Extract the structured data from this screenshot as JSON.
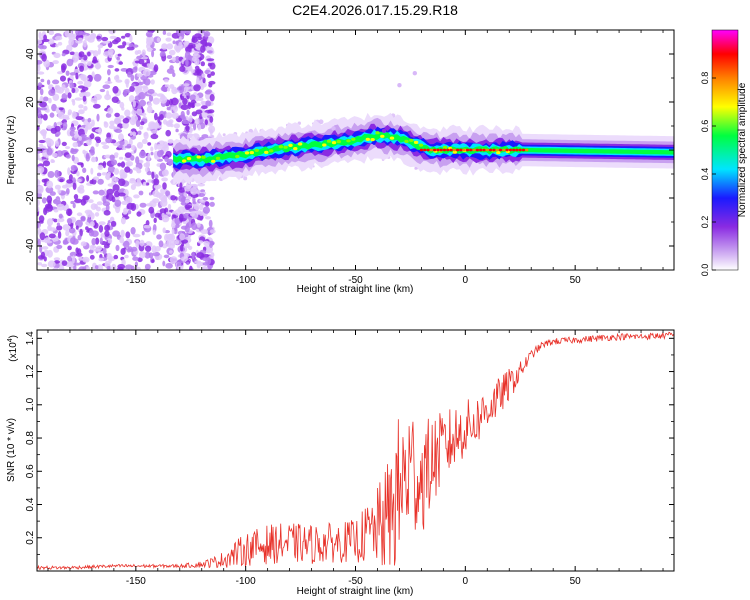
{
  "figure_title": "C2E4.2026.017.15.29.R18",
  "colors": {
    "snr_line": "#e8322a",
    "axis": "#000000",
    "spectrogram_noise": "#8a2be2"
  },
  "chart_data": [
    {
      "type": "heatmap",
      "title": "C2E4.2026.017.15.29.R18",
      "xlabel": "Height of straight line (km)",
      "ylabel": "Frequency (Hz)",
      "xlim": [
        -195,
        95
      ],
      "ylim": [
        -50,
        50
      ],
      "x_ticks": [
        -150,
        -100,
        -50,
        0,
        50
      ],
      "x_tick_labels": [
        "-150",
        "-100",
        "-50",
        "0",
        "50"
      ],
      "y_ticks": [
        -40,
        -20,
        0,
        20,
        40
      ],
      "y_tick_labels": [
        "-40",
        "-20",
        "0",
        "20",
        "40"
      ],
      "ridge_center_hz": [
        {
          "x": -132,
          "y": -4
        },
        {
          "x": -120,
          "y": -4
        },
        {
          "x": -110,
          "y": -3
        },
        {
          "x": -100,
          "y": -2
        },
        {
          "x": -90,
          "y": 0
        },
        {
          "x": -80,
          "y": 1
        },
        {
          "x": -70,
          "y": 2
        },
        {
          "x": -60,
          "y": 3
        },
        {
          "x": -50,
          "y": 4
        },
        {
          "x": -40,
          "y": 6
        },
        {
          "x": -30,
          "y": 5
        },
        {
          "x": -22,
          "y": 2
        },
        {
          "x": -15,
          "y": 0
        },
        {
          "x": 0,
          "y": 0
        },
        {
          "x": 25,
          "y": 0
        },
        {
          "x": 95,
          "y": -1
        }
      ],
      "colorbar": {
        "label": "Normalized spectral amplitude",
        "range": [
          0,
          1
        ],
        "ticks": [
          0.0,
          0.2,
          0.4,
          0.6,
          0.8
        ],
        "tick_labels": [
          "0.0",
          "0.2",
          "0.4",
          "0.6",
          "0.8"
        ],
        "colormap": [
          "#ffffff",
          "#8a2be2",
          "#1a1aff",
          "#00e5ff",
          "#00ff40",
          "#ffff00",
          "#ff8000",
          "#ff0000",
          "#ff00ff"
        ]
      }
    },
    {
      "type": "line",
      "xlabel": "Height of straight line (km)",
      "ylabel": "SNR (10 * v/v)",
      "y_multiplier": "(x10",
      "y_multiplier_exp": "4",
      "y_multiplier_close": ")",
      "xlim": [
        -195,
        95
      ],
      "ylim": [
        0,
        1.45
      ],
      "x_ticks": [
        -150,
        -100,
        -50,
        0,
        50
      ],
      "x_tick_labels": [
        "-150",
        "-100",
        "-50",
        "0",
        "50"
      ],
      "y_ticks": [
        0.2,
        0.4,
        0.6,
        0.8,
        1.0,
        1.2,
        1.4
      ],
      "y_tick_labels": [
        "0.2",
        "0.4",
        "0.6",
        "0.8",
        "1.0",
        "1.2",
        "1.4"
      ],
      "series": [
        {
          "name": "SNR",
          "x": [
            -195,
            -180,
            -160,
            -140,
            -130,
            -120,
            -112,
            -105,
            -100,
            -90,
            -80,
            -70,
            -60,
            -50,
            -45,
            -40,
            -35,
            -30,
            -25,
            -20,
            -15,
            -10,
            -5,
            0,
            5,
            10,
            15,
            20,
            25,
            30,
            35,
            40,
            50,
            60,
            70,
            80,
            95
          ],
          "values": [
            0.02,
            0.02,
            0.03,
            0.03,
            0.03,
            0.04,
            0.06,
            0.1,
            0.13,
            0.16,
            0.17,
            0.16,
            0.17,
            0.18,
            0.22,
            0.26,
            0.32,
            0.48,
            0.62,
            0.55,
            0.66,
            0.74,
            0.8,
            0.86,
            0.9,
            0.98,
            1.04,
            1.12,
            1.2,
            1.3,
            1.36,
            1.38,
            1.39,
            1.4,
            1.41,
            1.41,
            1.42
          ],
          "noise_amplitude": [
            0.01,
            0.01,
            0.01,
            0.01,
            0.01,
            0.02,
            0.04,
            0.08,
            0.1,
            0.12,
            0.12,
            0.12,
            0.12,
            0.13,
            0.18,
            0.24,
            0.36,
            0.48,
            0.42,
            0.34,
            0.28,
            0.22,
            0.2,
            0.17,
            0.15,
            0.14,
            0.12,
            0.1,
            0.06,
            0.03,
            0.02,
            0.02,
            0.02,
            0.02,
            0.02,
            0.02,
            0.02
          ]
        }
      ]
    }
  ]
}
